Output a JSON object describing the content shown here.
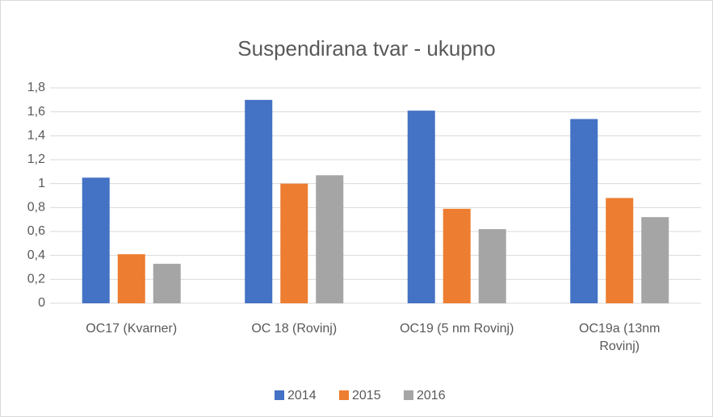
{
  "chart_data": {
    "type": "bar",
    "title": "Suspendirana tvar - ukupno",
    "categories": [
      "OC17 (Kvarner)",
      "OC 18 (Rovinj)",
      "OC19 (5 nm Rovinj)",
      "OC19a (13nm Rovinj)"
    ],
    "series": [
      {
        "name": "2014",
        "color": "#4472c4",
        "values": [
          1.05,
          1.7,
          1.61,
          1.54
        ]
      },
      {
        "name": "2015",
        "color": "#ed7d31",
        "values": [
          0.41,
          1.0,
          0.79,
          0.88
        ]
      },
      {
        "name": "2016",
        "color": "#a5a5a5",
        "values": [
          0.33,
          1.07,
          0.62,
          0.72
        ]
      }
    ],
    "ylim": [
      0,
      1.8
    ],
    "yticks": [
      0,
      {
        "value": 0.2,
        "label": "0,2"
      },
      {
        "value": 0.4,
        "label": "0,4"
      },
      {
        "value": 0.6,
        "label": "0,6"
      },
      {
        "value": 0.8,
        "label": "0,8"
      },
      1,
      {
        "value": 1.2,
        "label": "1,2"
      },
      {
        "value": 1.4,
        "label": "1,4"
      },
      {
        "value": 1.6,
        "label": "1,6"
      },
      {
        "value": 1.8,
        "label": "1,8"
      }
    ],
    "grid": true,
    "legend": "bottom"
  }
}
